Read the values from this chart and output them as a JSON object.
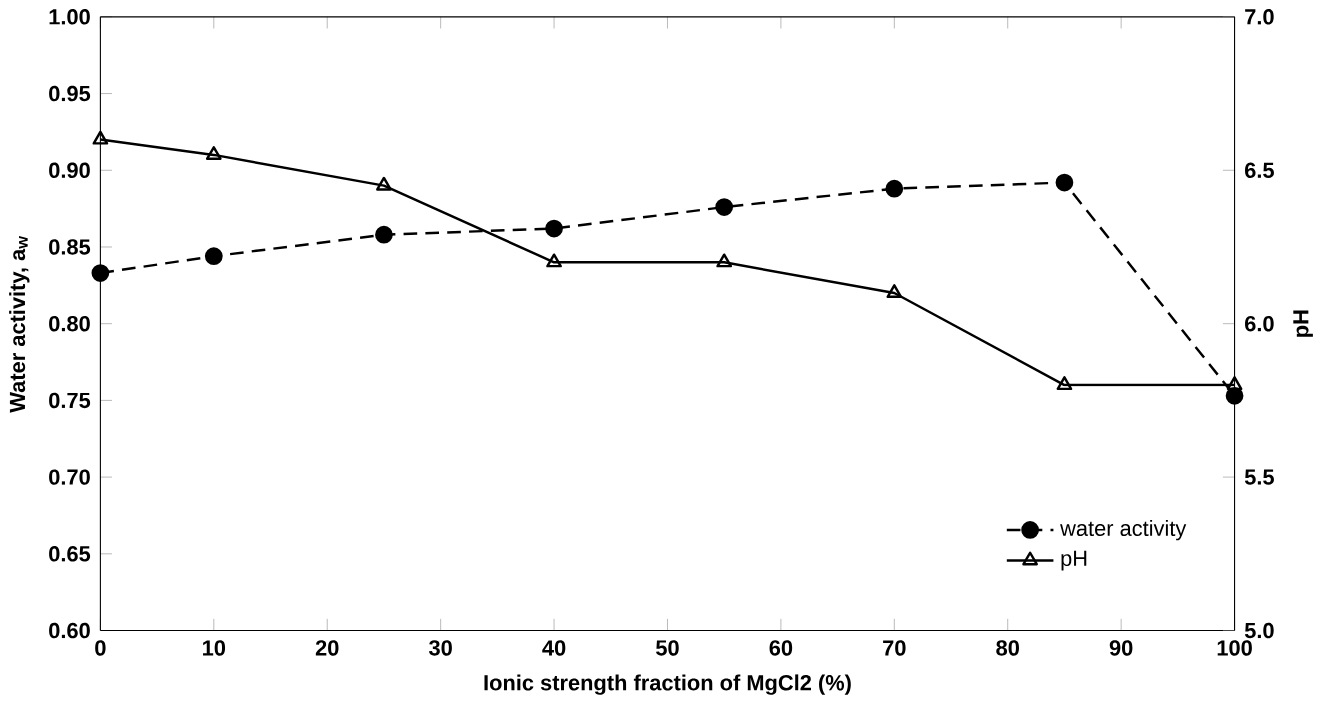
{
  "chart_data": {
    "type": "line",
    "xlabel": "Ionic strength fraction of MgCl2 (%)",
    "ylabel": "Water activity, a$_{w}$",
    "y2label": "pH",
    "x": [
      0,
      10,
      25,
      40,
      55,
      70,
      85,
      100
    ],
    "series": [
      {
        "name": "water activity",
        "color": "#000000",
        "values": [
          0.833,
          0.844,
          0.858,
          0.862,
          0.876,
          0.888,
          0.892,
          0.753
        ],
        "marker": "circle",
        "line_style": "dashed"
      },
      {
        "name": "pH",
        "color": "#000000",
        "values": [
          6.6,
          6.55,
          6.45,
          6.2,
          6.2,
          6.1,
          5.8,
          5.8
        ],
        "marker": "triangle",
        "line_style": "solid",
        "axis": "y2"
      }
    ],
    "xlim": [
      0,
      100
    ],
    "xticks": [
      0,
      10,
      20,
      30,
      40,
      50,
      60,
      70,
      80,
      90,
      100
    ],
    "ylim": [
      0.6,
      1.0
    ],
    "yticks": [
      {
        "value": 0.6,
        "label": "0.60"
      },
      {
        "value": 0.65,
        "label": "0.65"
      },
      {
        "value": 0.7,
        "label": "0.70"
      },
      {
        "value": 0.75,
        "label": "0.75"
      },
      {
        "value": 0.8,
        "label": "0.80"
      },
      {
        "value": 0.85,
        "label": "0.85"
      },
      {
        "value": 0.9,
        "label": "0.90"
      },
      {
        "value": 0.95,
        "label": "0.95"
      },
      {
        "value": 1.0,
        "label": "1.00"
      }
    ],
    "y2lim": [
      5.0,
      7.0
    ],
    "y2ticks": [
      {
        "value": 5.0,
        "label": "5.0"
      },
      {
        "value": 5.5,
        "label": "5.5"
      },
      {
        "value": 6.0,
        "label": "6.0"
      },
      {
        "value": 6.5,
        "label": "6.5"
      },
      {
        "value": 7.0,
        "label": "7.0"
      }
    ],
    "grid": false,
    "legend": "bottom right"
  }
}
